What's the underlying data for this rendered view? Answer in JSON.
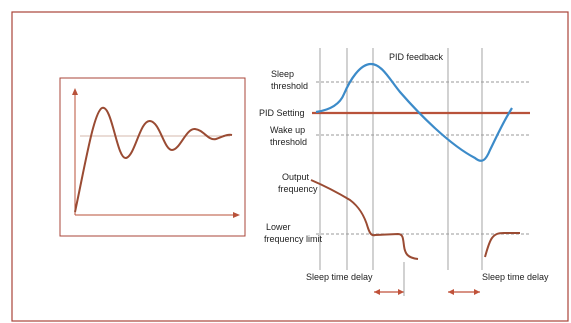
{
  "colors": {
    "frame_border": "#a94438",
    "curve_brown": "#9a4b33",
    "pid_setting_line": "#b8523a",
    "feedback_blue": "#3c8bc9",
    "gray_lines": "#9a9a9a",
    "delay_arrow": "#c0523a"
  },
  "labels": {
    "sleep_threshold_1": "Sleep",
    "sleep_threshold_2": "threshold",
    "pid_feedback": "PID feedback",
    "pid_setting": "PID Setting",
    "wake_up_1": "Wake up",
    "wake_up_2": "threshold",
    "output_freq_1": "Output",
    "output_freq_2": "frequency",
    "lower_freq_1": "Lower",
    "lower_freq_2": "frequency limit",
    "sleep_delay_1": "Sleep time delay",
    "sleep_delay_2": "Sleep time delay"
  }
}
